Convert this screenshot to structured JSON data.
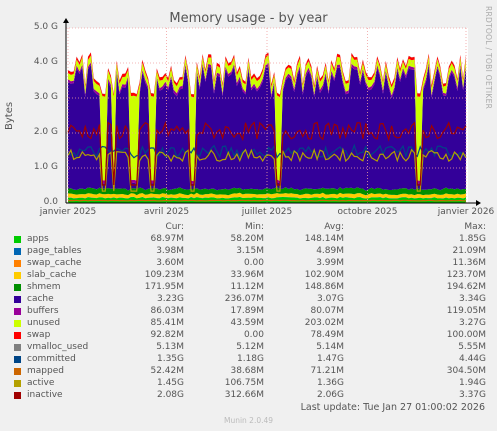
{
  "chart_data": {
    "type": "area",
    "title": "Memory usage - by year",
    "ylabel": "Bytes",
    "side_label": "RRDTOOL / TOBI OETIKER",
    "ylim": [
      0,
      5000000000.0
    ],
    "y_ticks": [
      "0.0",
      "1.0 G",
      "2.0 G",
      "3.0 G",
      "4.0 G",
      "5.0 G"
    ],
    "x_ticks": [
      "janvier 2025",
      "avril 2025",
      "juillet 2025",
      "octobre 2025",
      "janvier 2026"
    ],
    "grid": true,
    "columns": [
      "Cur:",
      "Min:",
      "Avg:",
      "Max:"
    ],
    "series": [
      {
        "name": "apps",
        "color": "#00cc00",
        "cur": "68.97M",
        "min": "58.20M",
        "avg": "148.14M",
        "max": "1.85G",
        "approx_level": 150000000.0
      },
      {
        "name": "page_tables",
        "color": "#0066b3",
        "cur": "3.98M",
        "min": "3.15M",
        "avg": "4.89M",
        "max": "21.09M",
        "approx_level": 4000000.0
      },
      {
        "name": "swap_cache",
        "color": "#ff8000",
        "cur": "3.60M",
        "min": "0.00",
        "avg": "3.99M",
        "max": "11.36M",
        "approx_level": 4000000.0
      },
      {
        "name": "slab_cache",
        "color": "#ffcc00",
        "cur": "109.23M",
        "min": "33.96M",
        "avg": "102.90M",
        "max": "123.70M",
        "approx_level": 100000000.0
      },
      {
        "name": "shmem",
        "color": "#008f00",
        "cur": "171.95M",
        "min": "11.12M",
        "avg": "148.86M",
        "max": "194.62M",
        "approx_level": 150000000.0
      },
      {
        "name": "cache",
        "color": "#330099",
        "cur": "3.23G",
        "min": "236.07M",
        "avg": "3.07G",
        "max": "3.34G",
        "approx_level": 3070000000.0
      },
      {
        "name": "buffers",
        "color": "#990099",
        "cur": "86.03M",
        "min": "17.89M",
        "avg": "80.07M",
        "max": "119.05M",
        "approx_level": 80000000.0
      },
      {
        "name": "unused",
        "color": "#ccff00",
        "cur": "85.41M",
        "min": "43.59M",
        "avg": "203.02M",
        "max": "3.27G",
        "approx_level": 200000000.0
      },
      {
        "name": "swap",
        "color": "#ff0000",
        "cur": "92.82M",
        "min": "0.00",
        "avg": "78.49M",
        "max": "100.00M",
        "approx_level": 80000000.0
      },
      {
        "name": "vmalloc_used",
        "color": "#808080",
        "cur": "5.13M",
        "min": "5.12M",
        "avg": "5.14M",
        "max": "5.55M",
        "approx_level": 5000000.0
      },
      {
        "name": "committed",
        "color": "#004586",
        "cur": "1.35G",
        "min": "1.18G",
        "avg": "1.47G",
        "max": "4.44G",
        "approx_level": 1470000000.0
      },
      {
        "name": "mapped",
        "color": "#cc6600",
        "cur": "52.42M",
        "min": "38.68M",
        "avg": "71.21M",
        "max": "304.50M",
        "approx_level": 70000000.0
      },
      {
        "name": "active",
        "color": "#b3a000",
        "cur": "1.45G",
        "min": "106.75M",
        "avg": "1.36G",
        "max": "1.94G",
        "approx_level": 1360000000.0
      },
      {
        "name": "inactive",
        "color": "#a00000",
        "cur": "2.08G",
        "min": "312.66M",
        "avg": "2.06G",
        "max": "3.37G",
        "approx_level": 2060000000.0
      }
    ],
    "last_update": "Last update: Tue Jan 27 01:00:02 2026",
    "version": "Munin 2.0.49"
  }
}
